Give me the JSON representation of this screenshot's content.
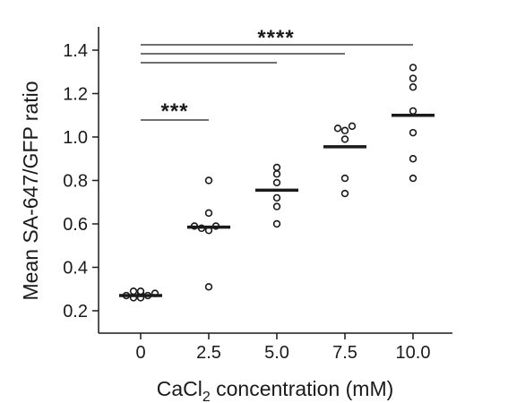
{
  "chart_data": {
    "type": "scatter",
    "title": "",
    "xlabel": "CaCl",
    "xlabel_subscript": "2",
    "xlabel_suffix": " concentration (mM)",
    "ylabel": "Mean SA-647/GFP ratio",
    "ylim": [
      0.1,
      1.45
    ],
    "y_ticks": [
      "0.2",
      "0.4",
      "0.6",
      "0.8",
      "1.0",
      "1.2",
      "1.4"
    ],
    "categories": [
      "0",
      "2.5",
      "5.0",
      "7.5",
      "10.0"
    ],
    "groups": [
      {
        "category": "0",
        "mean": 0.27,
        "points": [
          0.26,
          0.26,
          0.27,
          0.27,
          0.28,
          0.28,
          0.29,
          0.29
        ]
      },
      {
        "category": "2.5",
        "mean": 0.585,
        "points": [
          0.31,
          0.57,
          0.58,
          0.59,
          0.59,
          0.65,
          0.8
        ]
      },
      {
        "category": "5.0",
        "mean": 0.755,
        "points": [
          0.6,
          0.68,
          0.72,
          0.79,
          0.83,
          0.86
        ]
      },
      {
        "category": "7.5",
        "mean": 0.955,
        "points": [
          0.74,
          0.81,
          0.99,
          1.03,
          1.04,
          1.05
        ]
      },
      {
        "category": "10.0",
        "mean": 1.1,
        "points": [
          0.81,
          0.9,
          1.02,
          1.12,
          1.23,
          1.27,
          1.32
        ]
      }
    ],
    "significance": [
      {
        "label": "***",
        "from": "0",
        "to": "2.5"
      },
      {
        "label": "****",
        "from": "0",
        "to": "5.0"
      },
      {
        "label": "",
        "from": "0",
        "to": "7.5"
      },
      {
        "label": "",
        "from": "0",
        "to": "10.0"
      }
    ]
  }
}
